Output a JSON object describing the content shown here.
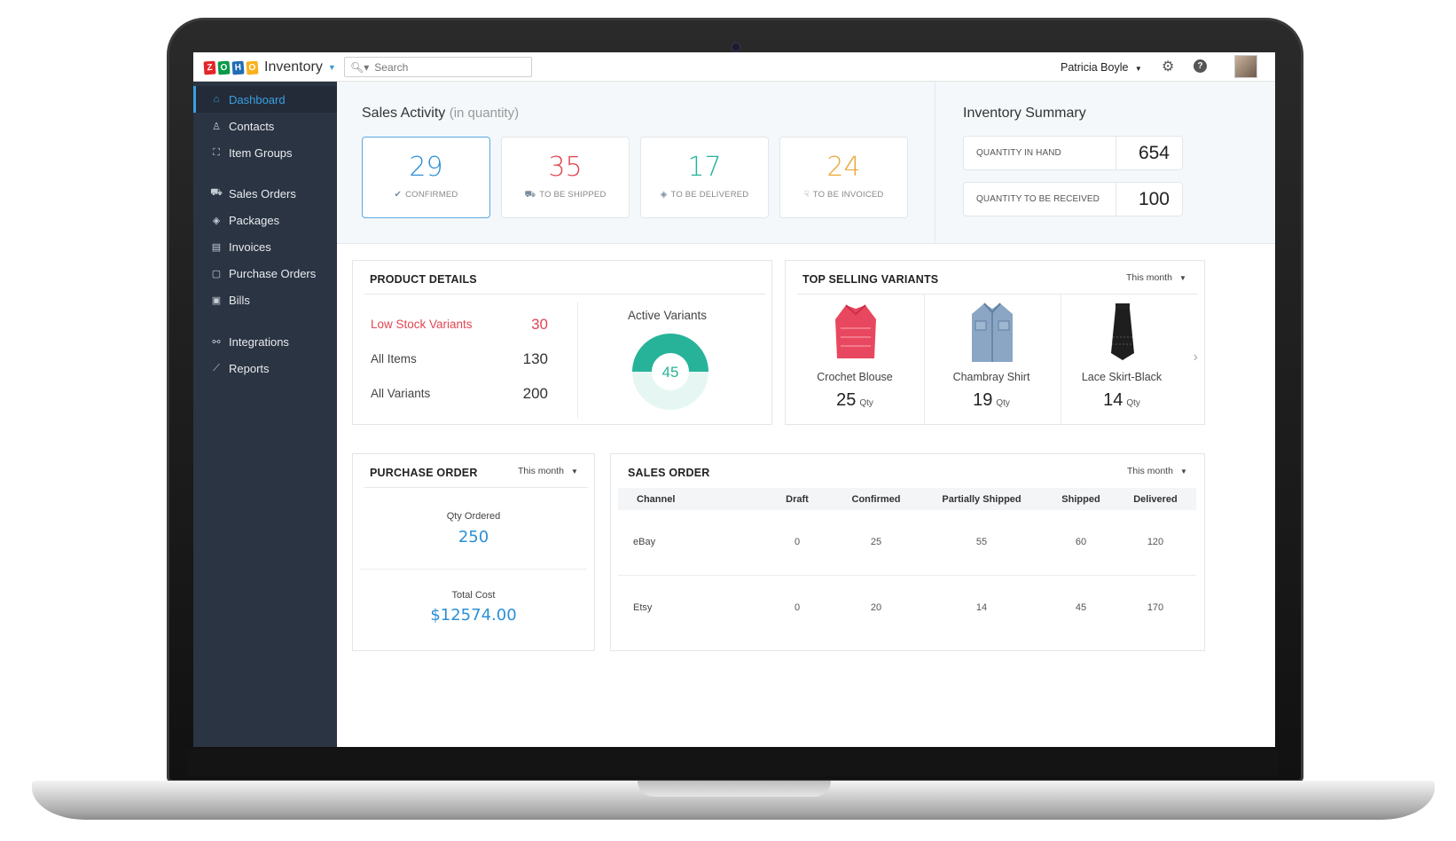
{
  "app": {
    "name": "Inventory",
    "logo_letters": [
      "Z",
      "O",
      "H",
      "O"
    ],
    "logo_colors": [
      "#e42527",
      "#089949",
      "#226db4",
      "#f9b21d"
    ]
  },
  "topbar": {
    "search_placeholder": "Search",
    "user_name": "Patricia Boyle",
    "help_glyph": "?"
  },
  "sidebar": {
    "items": [
      {
        "label": "Dashboard",
        "icon": "home-icon",
        "active": true
      },
      {
        "label": "Contacts",
        "icon": "contact-icon"
      },
      {
        "label": "Item Groups",
        "icon": "basket-icon"
      },
      {
        "label": "Sales Orders",
        "icon": "cart-icon"
      },
      {
        "label": "Packages",
        "icon": "package-icon"
      },
      {
        "label": "Invoices",
        "icon": "invoice-icon"
      },
      {
        "label": "Purchase Orders",
        "icon": "bag-icon"
      },
      {
        "label": "Bills",
        "icon": "bill-icon"
      },
      {
        "label": "Integrations",
        "icon": "integration-icon"
      },
      {
        "label": "Reports",
        "icon": "chart-icon"
      }
    ]
  },
  "sales_activity": {
    "title": "Sales Activity",
    "subtitle": "(in quantity)",
    "cards": [
      {
        "value": "29",
        "label": "CONFIRMED",
        "color": "#2b8fd6",
        "icon": "check-circle-icon"
      },
      {
        "value": "35",
        "label": "TO BE SHIPPED",
        "color": "#e14652",
        "icon": "truck-icon"
      },
      {
        "value": "17",
        "label": "TO BE DELIVERED",
        "color": "#27b399",
        "icon": "box-icon"
      },
      {
        "value": "24",
        "label": "TO BE INVOICED",
        "color": "#e8a93a",
        "icon": "hand-icon"
      }
    ]
  },
  "inventory_summary": {
    "title": "Inventory Summary",
    "rows": [
      {
        "label": "QUANTITY IN HAND",
        "value": "654"
      },
      {
        "label": "QUANTITY TO BE RECEIVED",
        "value": "100"
      }
    ]
  },
  "product_details": {
    "title": "PRODUCT DETAILS",
    "rows": [
      {
        "label": "Low Stock Variants",
        "value": "30"
      },
      {
        "label": "All Items",
        "value": "130"
      },
      {
        "label": "All Variants",
        "value": "200"
      }
    ],
    "active_variants_title": "Active Variants",
    "active_variants_value": "45",
    "active_variants_fraction": 0.5,
    "ring_color": "#27b399",
    "ring_bg_color": "#e6f7f3"
  },
  "top_selling": {
    "title": "TOP SELLING VARIANTS",
    "filter": "This month",
    "items": [
      {
        "name": "Crochet Blouse",
        "qty": "25",
        "unit": "Qty",
        "image": "pink-blouse"
      },
      {
        "name": "Chambray Shirt",
        "qty": "19",
        "unit": "Qty",
        "image": "denim-shirt"
      },
      {
        "name": "Lace Skirt-Black",
        "qty": "14",
        "unit": "Qty",
        "image": "black-skirt"
      }
    ]
  },
  "purchase_order": {
    "title": "PURCHASE ORDER",
    "filter": "This month",
    "qty_label": "Qty Ordered",
    "qty_value": "250",
    "cost_label": "Total Cost",
    "cost_value": "$12574.00"
  },
  "sales_order": {
    "title": "SALES ORDER",
    "filter": "This month",
    "columns": [
      "Channel",
      "Draft",
      "Confirmed",
      "Partially Shipped",
      "Shipped",
      "Delivered"
    ],
    "rows": [
      [
        "eBay",
        "0",
        "25",
        "55",
        "60",
        "120"
      ],
      [
        "Etsy",
        "0",
        "20",
        "14",
        "45",
        "170"
      ]
    ]
  }
}
